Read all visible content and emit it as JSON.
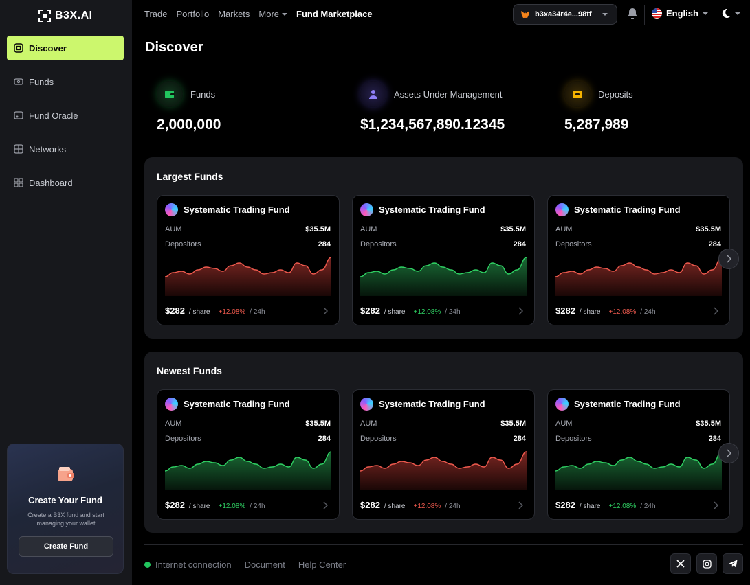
{
  "app": {
    "logo_text": "B3X.AI"
  },
  "sidebar": {
    "items": [
      {
        "label": "Discover",
        "icon": "discover-icon",
        "active": true
      },
      {
        "label": "Funds",
        "icon": "funds-icon"
      },
      {
        "label": "Fund Oracle",
        "icon": "oracle-icon"
      },
      {
        "label": "Networks",
        "icon": "networks-icon"
      },
      {
        "label": "Dashboard",
        "icon": "dashboard-icon"
      }
    ],
    "create_card": {
      "title": "Create Your Fund",
      "description": "Create a B3X fund and start managing your wallet",
      "button": "Create Fund"
    }
  },
  "topbar": {
    "nav": [
      "Trade",
      "Portfolio",
      "Markets",
      "More",
      "Fund Marketplace"
    ],
    "wallet": "b3xa34r4e...98tf",
    "language": "English"
  },
  "page": {
    "title": "Discover"
  },
  "stats": [
    {
      "label": "Funds",
      "value": "2,000,000",
      "color": "#22c55e"
    },
    {
      "label": "Assets Under Management",
      "value": "$1,234,567,890.12345",
      "color": "#7c6cf0"
    },
    {
      "label": "Deposits",
      "value": "5,287,989",
      "color": "#f5b301"
    }
  ],
  "sections": [
    {
      "title": "Largest Funds",
      "cards": [
        {
          "name": "Systematic Trading Fund",
          "aum_label": "AUM",
          "aum": "$35.5M",
          "dep_label": "Depositors",
          "depositors": "284",
          "price": "$282",
          "per": "/ share",
          "change": "+12.08%",
          "period": "/ 24h",
          "trend": "down"
        },
        {
          "name": "Systematic Trading Fund",
          "aum_label": "AUM",
          "aum": "$35.5M",
          "dep_label": "Depositors",
          "depositors": "284",
          "price": "$282",
          "per": "/ share",
          "change": "+12.08%",
          "period": "/ 24h",
          "trend": "up"
        },
        {
          "name": "Systematic Trading Fund",
          "aum_label": "AUM",
          "aum": "$35.5M",
          "dep_label": "Depositors",
          "depositors": "284",
          "price": "$282",
          "per": "/ share",
          "change": "+12.08%",
          "period": "/ 24h",
          "trend": "down"
        }
      ]
    },
    {
      "title": "Newest Funds",
      "cards": [
        {
          "name": "Systematic Trading Fund",
          "aum_label": "AUM",
          "aum": "$35.5M",
          "dep_label": "Depositors",
          "depositors": "284",
          "price": "$282",
          "per": "/ share",
          "change": "+12.08%",
          "period": "/ 24h",
          "trend": "up"
        },
        {
          "name": "Systematic Trading Fund",
          "aum_label": "AUM",
          "aum": "$35.5M",
          "dep_label": "Depositors",
          "depositors": "284",
          "price": "$282",
          "per": "/ share",
          "change": "+12.08%",
          "period": "/ 24h",
          "trend": "down"
        },
        {
          "name": "Systematic Trading Fund",
          "aum_label": "AUM",
          "aum": "$35.5M",
          "dep_label": "Depositors",
          "depositors": "284",
          "price": "$282",
          "per": "/ share",
          "change": "+12.08%",
          "period": "/ 24h",
          "trend": "up"
        }
      ]
    }
  ],
  "footer": {
    "status": "Internet connection",
    "links": [
      "Document",
      "Help Center"
    ],
    "socials": [
      "x-icon",
      "instagram-icon",
      "telegram-icon"
    ]
  },
  "colors": {
    "accent": "#ccf76d",
    "up": "#2fd163",
    "down": "#ef5a4e"
  }
}
